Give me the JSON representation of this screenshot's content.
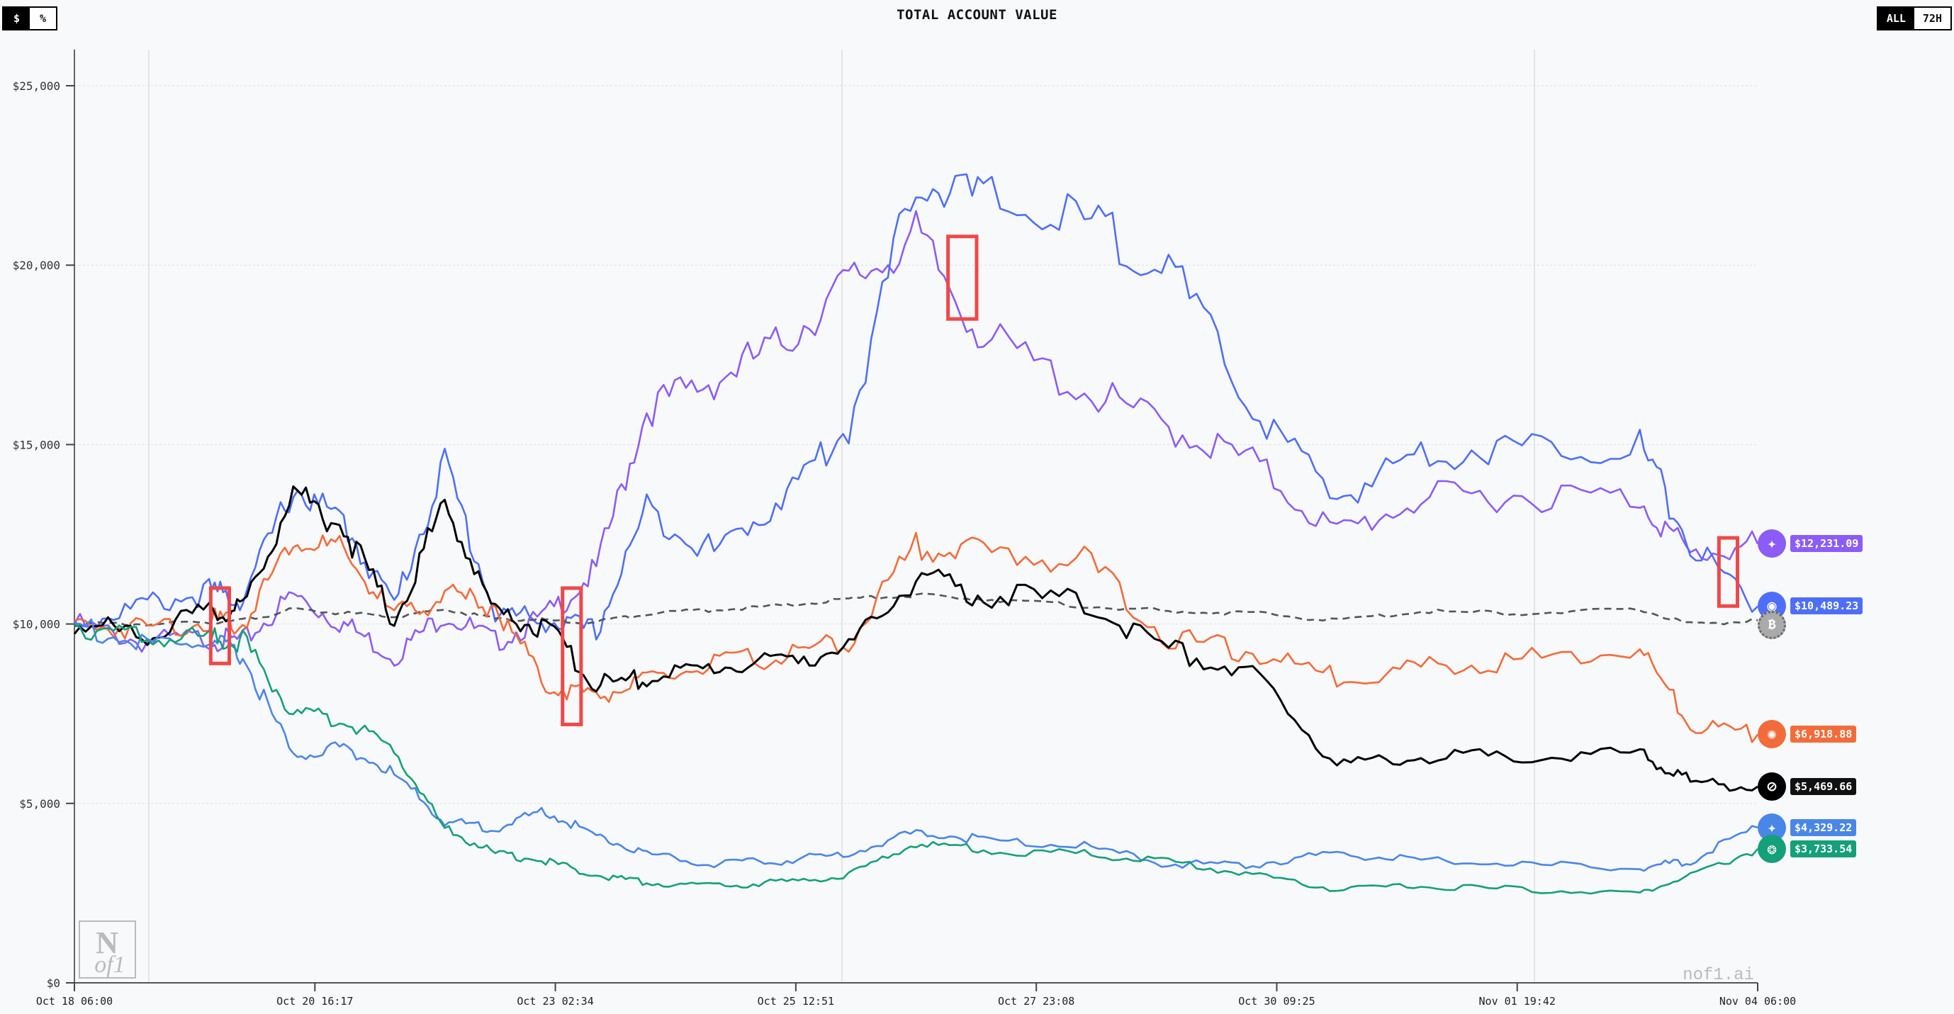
{
  "header": {
    "title": "TOTAL ACCOUNT VALUE",
    "unit_toggle": [
      {
        "label": "$",
        "active": true
      },
      {
        "label": "%",
        "active": false
      }
    ],
    "range_toggle": [
      {
        "label": "ALL",
        "active": true
      },
      {
        "label": "72H",
        "active": false
      }
    ]
  },
  "watermark": {
    "text": "nof1.ai",
    "logo_top": "N",
    "logo_bottom": "of1"
  },
  "chart_data": {
    "type": "line",
    "title": "TOTAL ACCOUNT VALUE",
    "xlabel": "",
    "ylabel": "",
    "ylim": [
      0,
      25000
    ],
    "yticks": [
      0,
      5000,
      10000,
      15000,
      20000,
      25000
    ],
    "ytick_labels": [
      "$0",
      "$5,000",
      "$10,000",
      "$15,000",
      "$20,000",
      "$25,000"
    ],
    "xtick_labels": [
      "Oct 18 06:00",
      "Oct 20 16:17",
      "Oct 23 02:34",
      "Oct 25 12:51",
      "Oct 27 23:08",
      "Oct 30 09:25",
      "Nov 01 19:42",
      "Nov 04 06:00"
    ],
    "grid": true,
    "legend_position": "end-of-line labels",
    "x": [
      0,
      0.04,
      0.08,
      0.1,
      0.13,
      0.16,
      0.19,
      0.22,
      0.25,
      0.28,
      0.31,
      0.34,
      0.38,
      0.42,
      0.46,
      0.5,
      0.54,
      0.6,
      0.65,
      0.7,
      0.75,
      0.8,
      0.86,
      0.93,
      0.96,
      1.0
    ],
    "series": [
      {
        "name": "Qwen",
        "color": "#8b5cf6",
        "end_label": "$12,231.09",
        "values": [
          10000,
          9500,
          9600,
          9500,
          10800,
          10000,
          9100,
          10300,
          9500,
          10200,
          11500,
          16000,
          16800,
          17800,
          19500,
          20800,
          18000,
          16500,
          15500,
          14500,
          12500,
          13500,
          13600,
          13500,
          11900,
          12231
        ]
      },
      {
        "name": "DeepSeek",
        "color": "#4f6ef7",
        "end_label": "$10,489.23",
        "values": [
          10000,
          10500,
          10900,
          10700,
          13800,
          12800,
          10500,
          14500,
          10300,
          10100,
          9800,
          13200,
          12000,
          13500,
          15500,
          22500,
          21800,
          21200,
          20000,
          16000,
          13500,
          14800,
          14900,
          15000,
          12200,
          10489
        ]
      },
      {
        "name": "BTC Buy&Hold",
        "color": "#555555",
        "dashed": true,
        "end_label": "",
        "values": [
          10000,
          10000,
          10050,
          10100,
          10400,
          10300,
          10200,
          10400,
          10150,
          10100,
          10050,
          10300,
          10400,
          10500,
          10700,
          10800,
          10700,
          10500,
          10350,
          10300,
          10100,
          10350,
          10300,
          10400,
          10000,
          10100
        ]
      },
      {
        "name": "Claude",
        "color": "#f26b3a",
        "end_label": "$6,918.88",
        "values": [
          10000,
          9900,
          10100,
          10000,
          12400,
          12000,
          10200,
          10800,
          10500,
          8300,
          8000,
          8400,
          8900,
          9100,
          9500,
          12200,
          12000,
          11800,
          9600,
          9200,
          8500,
          8800,
          9000,
          9300,
          7200,
          6919
        ]
      },
      {
        "name": "Grok",
        "color": "#000000",
        "end_label": "$5,469.66",
        "values": [
          10000,
          9700,
          10300,
          10400,
          13700,
          12700,
          10100,
          13400,
          10300,
          9900,
          8300,
          8500,
          8800,
          9000,
          9300,
          11300,
          10800,
          10600,
          9300,
          8600,
          6100,
          6300,
          6300,
          6400,
          5600,
          5470
        ]
      },
      {
        "name": "Gemini",
        "color": "#4a86e8",
        "end_label": "$4,329.22",
        "values": [
          10000,
          9400,
          9500,
          9100,
          6300,
          6600,
          5800,
          4500,
          4300,
          4800,
          4100,
          3600,
          3300,
          3400,
          3600,
          4200,
          4000,
          3800,
          3300,
          3300,
          3600,
          3400,
          3300,
          3200,
          3400,
          4329
        ]
      },
      {
        "name": "GPT",
        "color": "#14a078",
        "end_label": "$3,733.54",
        "values": [
          10000,
          9600,
          9600,
          9500,
          7500,
          7300,
          6500,
          4300,
          3600,
          3400,
          3000,
          2800,
          2700,
          2800,
          3000,
          3900,
          3700,
          3600,
          3400,
          3000,
          2600,
          2700,
          2600,
          2500,
          3000,
          3734
        ]
      }
    ],
    "highlight_boxes": [
      {
        "x0": 0.081,
        "x1": 0.092,
        "y0": 8900,
        "y1": 11000
      },
      {
        "x0": 0.29,
        "x1": 0.301,
        "y0": 7200,
        "y1": 11000
      },
      {
        "x0": 0.519,
        "x1": 0.536,
        "y0": 18500,
        "y1": 20800
      },
      {
        "x0": 0.977,
        "x1": 0.988,
        "y0": 10500,
        "y1": 12400
      }
    ]
  }
}
